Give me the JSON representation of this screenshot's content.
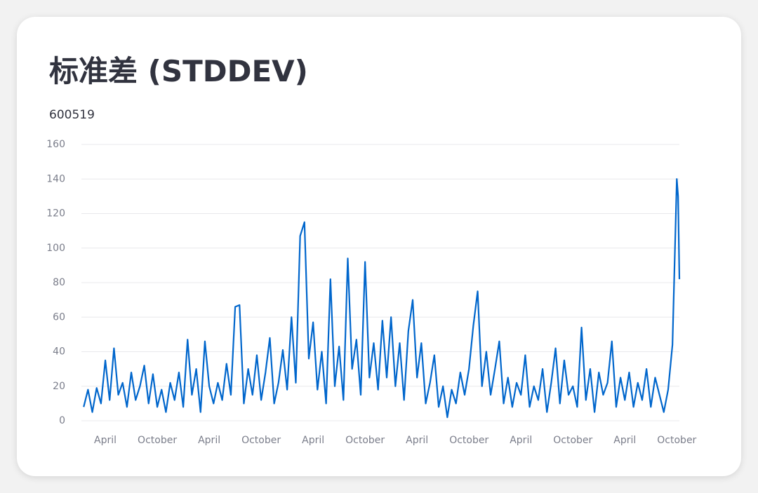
{
  "chart_data": {
    "type": "line",
    "title": "标准差 (STDDEV)",
    "subtitle": "600519",
    "color": "#0066cc",
    "grid": true,
    "xlim": [
      0.24,
      69.3
    ],
    "ylim": [
      0,
      160
    ],
    "yticks": [
      0,
      20,
      40,
      60,
      80,
      100,
      120,
      140,
      160
    ],
    "xticks": [
      {
        "value": 3,
        "label": "April"
      },
      {
        "value": 9,
        "label": "October"
      },
      {
        "value": 15,
        "label": "April"
      },
      {
        "value": 21,
        "label": "October"
      },
      {
        "value": 27,
        "label": "April"
      },
      {
        "value": 33,
        "label": "October"
      },
      {
        "value": 39,
        "label": "April"
      },
      {
        "value": 45,
        "label": "October"
      },
      {
        "value": 51,
        "label": "April"
      },
      {
        "value": 57,
        "label": "October"
      },
      {
        "value": 63,
        "label": "April"
      },
      {
        "value": 69,
        "label": "October"
      }
    ],
    "x": [
      0.5,
      1,
      1.5,
      2,
      2.5,
      3,
      3.5,
      4,
      4.5,
      5,
      5.5,
      6,
      6.5,
      7,
      7.5,
      8,
      8.5,
      9,
      9.5,
      10,
      10.5,
      11,
      11.5,
      12,
      12.5,
      13,
      13.5,
      14,
      14.5,
      15,
      15.5,
      16,
      16.5,
      17,
      17.5,
      18,
      18.5,
      19,
      19.5,
      20,
      20.5,
      21,
      21.5,
      22,
      22.5,
      23,
      23.5,
      24,
      24.5,
      25,
      25.5,
      26,
      26.5,
      27,
      27.5,
      28,
      28.5,
      29,
      29.5,
      30,
      30.5,
      31,
      31.5,
      32,
      32.5,
      33,
      33.5,
      34,
      34.5,
      35,
      35.5,
      36,
      36.5,
      37,
      37.5,
      38,
      38.5,
      39,
      39.5,
      40,
      40.5,
      41,
      41.5,
      42,
      42.5,
      43,
      43.5,
      44,
      44.5,
      45,
      45.5,
      46,
      46.5,
      47,
      47.5,
      48,
      48.5,
      49,
      49.5,
      50,
      50.5,
      51,
      51.5,
      52,
      52.5,
      53,
      53.5,
      54,
      54.5,
      55,
      55.5,
      56,
      56.5,
      57,
      57.5,
      58,
      58.5,
      59,
      59.5,
      60,
      60.5,
      61,
      61.5,
      62,
      62.5,
      63,
      63.5,
      64,
      64.5,
      65,
      65.5,
      66,
      66.5,
      67,
      67.5,
      68,
      68.5,
      69,
      69.15,
      69.3
    ],
    "values": [
      8,
      18,
      5,
      19,
      10,
      35,
      12,
      42,
      15,
      22,
      8,
      28,
      12,
      20,
      32,
      10,
      27,
      8,
      18,
      5,
      22,
      12,
      28,
      8,
      47,
      15,
      30,
      5,
      46,
      20,
      10,
      22,
      12,
      33,
      15,
      66,
      67,
      10,
      30,
      15,
      38,
      12,
      28,
      48,
      10,
      22,
      41,
      18,
      60,
      22,
      107,
      115,
      36,
      57,
      18,
      40,
      10,
      82,
      20,
      43,
      12,
      94,
      30,
      47,
      15,
      92,
      25,
      45,
      18,
      58,
      25,
      60,
      20,
      45,
      12,
      52,
      70,
      25,
      45,
      10,
      22,
      38,
      8,
      20,
      2,
      18,
      10,
      28,
      15,
      30,
      55,
      75,
      20,
      40,
      15,
      30,
      46,
      10,
      25,
      8,
      22,
      15,
      38,
      8,
      20,
      12,
      30,
      5,
      22,
      42,
      10,
      35,
      15,
      20,
      8,
      54,
      12,
      30,
      5,
      28,
      15,
      22,
      46,
      8,
      25,
      12,
      28,
      8,
      22,
      12,
      30,
      8,
      25,
      15,
      5,
      18,
      44,
      140,
      130,
      82
    ]
  }
}
